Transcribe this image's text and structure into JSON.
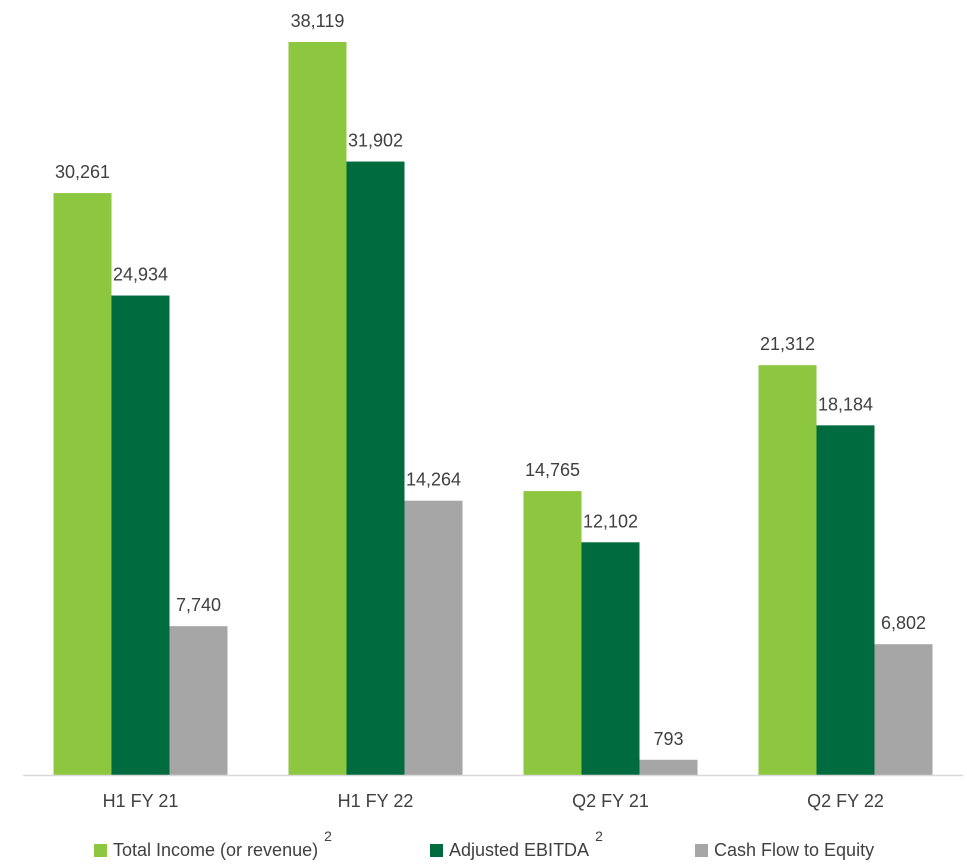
{
  "chart_data": {
    "type": "bar",
    "categories": [
      "H1 FY 21",
      "H1 FY 22",
      "Q2 FY 21",
      "Q2 FY 22"
    ],
    "series": [
      {
        "name": "Total Income (or revenue)",
        "legend_sup": "2",
        "color": "#8DC63F",
        "values": [
          30261,
          38119,
          14765,
          21312
        ],
        "labels": [
          "30,261",
          "38,119",
          "14,765",
          "21,312"
        ]
      },
      {
        "name": "Adjusted EBITDA",
        "legend_sup": "2",
        "color": "#006B3F",
        "values": [
          24934,
          31902,
          12102,
          18184
        ],
        "labels": [
          "24,934",
          "31,902",
          "12,102",
          "18,184"
        ]
      },
      {
        "name": "Cash Flow to Equity",
        "legend_sup": "",
        "color": "#A6A6A6",
        "values": [
          7740,
          14264,
          793,
          6802
        ],
        "labels": [
          "7,740",
          "14,264",
          "793",
          "6,802"
        ]
      }
    ],
    "ylim": [
      0,
      40000
    ],
    "grid": false,
    "legend_position": "bottom"
  }
}
